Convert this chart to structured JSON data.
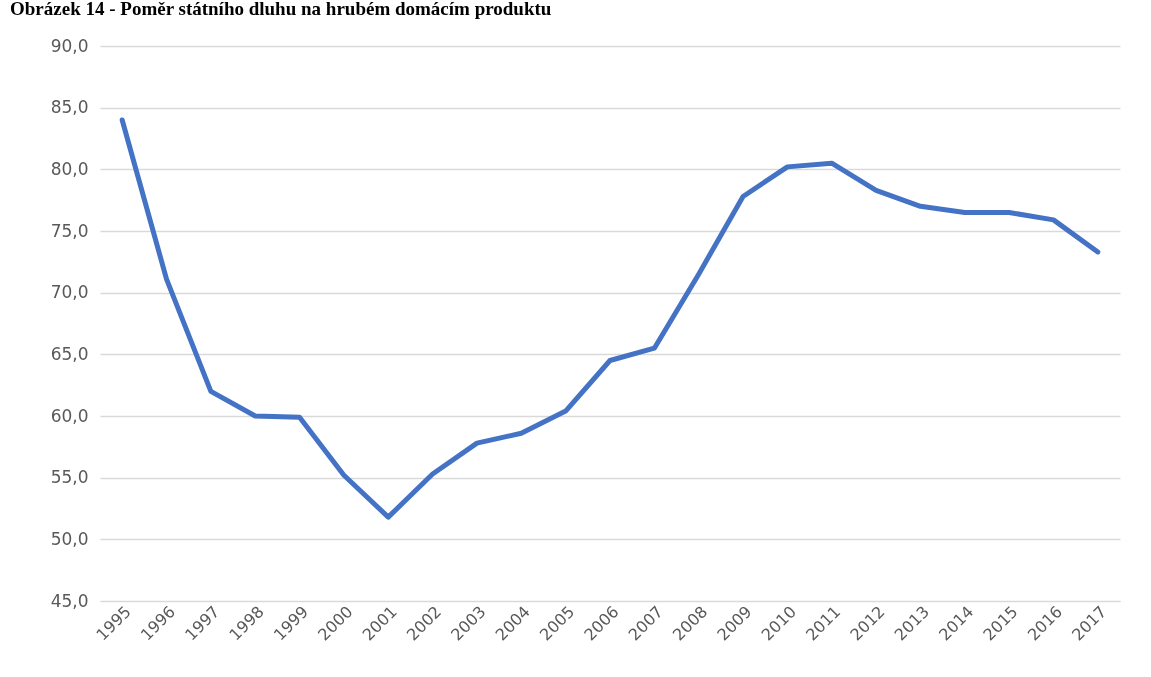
{
  "chart_data": {
    "type": "line",
    "title": "Obrázek 14 - Poměr státního dluhu na hrubém domácím produktu",
    "categories": [
      "1995",
      "1996",
      "1997",
      "1998",
      "1999",
      "2000",
      "2001",
      "2002",
      "2003",
      "2004",
      "2005",
      "2006",
      "2007",
      "2008",
      "2009",
      "2010",
      "2011",
      "2012",
      "2013",
      "2014",
      "2015",
      "2016",
      "2017"
    ],
    "series": [
      {
        "color": "#4472c4",
        "values": [
          84.0,
          71.1,
          62.0,
          60.0,
          59.9,
          55.2,
          51.8,
          55.3,
          57.8,
          58.6,
          60.4,
          64.5,
          65.5,
          71.5,
          77.8,
          80.2,
          80.5,
          78.3,
          77.0,
          76.5,
          76.5,
          75.9,
          73.3
        ]
      }
    ],
    "ylim": [
      45,
      90
    ],
    "yticks": [
      {
        "value": 45,
        "label": "45,0"
      },
      {
        "value": 50,
        "label": "50,0"
      },
      {
        "value": 55,
        "label": "55,0"
      },
      {
        "value": 60,
        "label": "60,0"
      },
      {
        "value": 65,
        "label": "65,0"
      },
      {
        "value": 70,
        "label": "70,0"
      },
      {
        "value": 75,
        "label": "75,0"
      },
      {
        "value": 80,
        "label": "80,0"
      },
      {
        "value": 85,
        "label": "85,0"
      },
      {
        "value": 90,
        "label": "90,0"
      }
    ],
    "grid": "y"
  }
}
